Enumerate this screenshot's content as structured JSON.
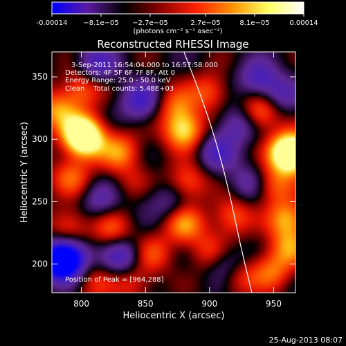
{
  "colorbar": {
    "ticks": [
      "-0.00014",
      "−8.1e−05",
      "−2.7e−05",
      "2.7e−05",
      "8.1e−05",
      "0.00014"
    ],
    "unit_label": "(photons cm⁻² s⁻¹ asec⁻²)",
    "range": [
      -0.00014,
      0.00014
    ],
    "colormap": [
      "#0000ff",
      "#5a1aa0",
      "#000000",
      "#8a0000",
      "#ff2000",
      "#ff9000",
      "#ffff60",
      "#ffffff"
    ]
  },
  "chart_data": {
    "type": "heatmap",
    "title": "Reconstructed RHESSI Image",
    "xlabel": "Heliocentric X (arcsec)",
    "ylabel": "Heliocentric Y (arcsec)",
    "xlim": [
      777,
      967
    ],
    "ylim": [
      177,
      370
    ],
    "x_ticks": [
      800,
      850,
      900,
      950
    ],
    "y_ticks": [
      200,
      250,
      300,
      350
    ],
    "x_tick_labels": [
      "800",
      "850",
      "900",
      "950"
    ],
    "y_tick_labels": [
      "200",
      "250",
      "300",
      "350"
    ],
    "peak": [
      964,
      288
    ],
    "annotations": {
      "time_range": "3-Sep-2011 16:54:04.000 to 16:57:58.000",
      "detectors": "Detectors: 4F 5F 6F 7F 8F, Att 0",
      "energy": "Energy Range: 25.0 - 50.0 keV",
      "method": "Clean    Total counts: 5.48E+03",
      "peak_text": "Position of Peak = [964,288]"
    },
    "limb_curve": [
      [
        880,
        370
      ],
      [
        895,
        330
      ],
      [
        906,
        295
      ],
      [
        916,
        255
      ],
      [
        924,
        215
      ],
      [
        933,
        177
      ]
    ],
    "sources": [
      {
        "x": 781,
        "y": 323,
        "level": 0.65
      },
      {
        "x": 800,
        "y": 340,
        "level": 0.55
      },
      {
        "x": 800,
        "y": 305,
        "level": 0.8
      },
      {
        "x": 803,
        "y": 300,
        "level": 0.9
      },
      {
        "x": 792,
        "y": 270,
        "level": 0.55
      },
      {
        "x": 830,
        "y": 290,
        "level": 0.65
      },
      {
        "x": 843,
        "y": 263,
        "level": 0.6
      },
      {
        "x": 880,
        "y": 307,
        "level": 0.95
      },
      {
        "x": 874,
        "y": 327,
        "level": 0.5
      },
      {
        "x": 900,
        "y": 338,
        "level": 0.5
      },
      {
        "x": 883,
        "y": 265,
        "level": 0.55
      },
      {
        "x": 880,
        "y": 232,
        "level": 0.7
      },
      {
        "x": 900,
        "y": 210,
        "level": 0.45
      },
      {
        "x": 918,
        "y": 238,
        "level": 0.55
      },
      {
        "x": 922,
        "y": 190,
        "level": 0.45
      },
      {
        "x": 940,
        "y": 322,
        "level": 0.7
      },
      {
        "x": 950,
        "y": 263,
        "level": 0.55
      },
      {
        "x": 962,
        "y": 290,
        "level": 0.8
      },
      {
        "x": 964,
        "y": 288,
        "level": 1.0
      },
      {
        "x": 961,
        "y": 236,
        "level": 0.75
      },
      {
        "x": 962,
        "y": 213,
        "level": 0.6
      },
      {
        "x": 948,
        "y": 194,
        "level": 0.55
      },
      {
        "x": 790,
        "y": 230,
        "level": 0.5
      },
      {
        "x": 824,
        "y": 228,
        "level": 0.5
      },
      {
        "x": 856,
        "y": 208,
        "level": 0.45
      },
      {
        "x": 840,
        "y": 185,
        "level": 0.4
      },
      {
        "x": 810,
        "y": 185,
        "level": 0.35
      },
      {
        "x": 783,
        "y": 202,
        "level": -0.95
      },
      {
        "x": 790,
        "y": 205,
        "level": -0.85
      },
      {
        "x": 832,
        "y": 206,
        "level": -0.6
      },
      {
        "x": 846,
        "y": 330,
        "level": -0.6
      },
      {
        "x": 812,
        "y": 360,
        "level": -0.55
      },
      {
        "x": 846,
        "y": 260,
        "level": -0.45
      },
      {
        "x": 905,
        "y": 290,
        "level": -0.5
      },
      {
        "x": 922,
        "y": 312,
        "level": -0.5
      },
      {
        "x": 938,
        "y": 348,
        "level": -0.55
      },
      {
        "x": 913,
        "y": 200,
        "level": -0.5
      },
      {
        "x": 930,
        "y": 265,
        "level": -0.4
      },
      {
        "x": 955,
        "y": 335,
        "level": -0.45
      },
      {
        "x": 870,
        "y": 248,
        "level": -0.35
      },
      {
        "x": 815,
        "y": 250,
        "level": -0.4
      }
    ]
  },
  "footer": {
    "date_stamp": "25-Aug-2013 08:07"
  }
}
